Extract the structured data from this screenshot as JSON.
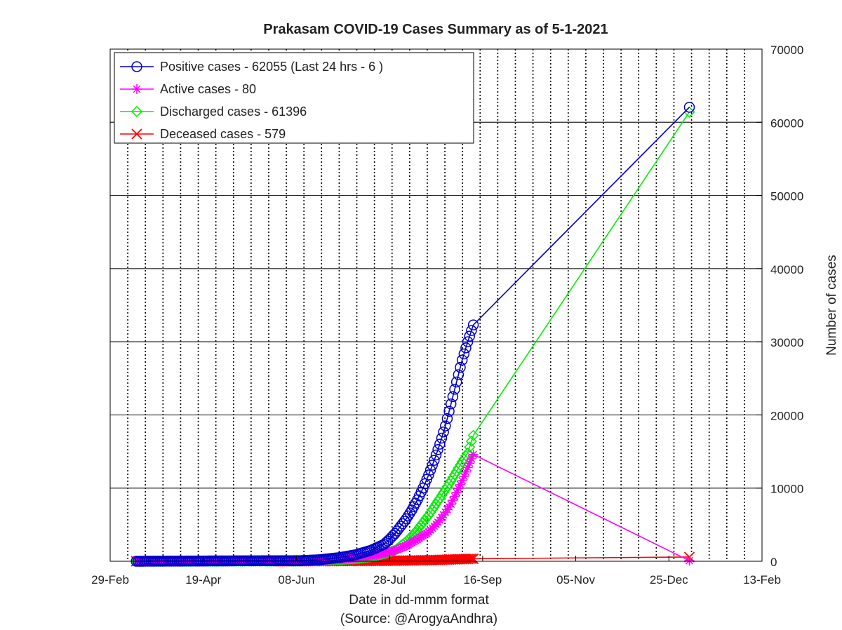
{
  "chart_data": {
    "type": "line",
    "title": "Prakasam COVID-19 Cases Summary as of 5-1-2021",
    "xlabel": "Date in dd-mmm format",
    "xlabel_source": "(Source: @ArogyaAndhra)",
    "ylabel": "Number of cases",
    "y_axis_side": "right",
    "xlim": [
      "2020-02-29",
      "2021-02-13"
    ],
    "ylim": [
      0,
      70000
    ],
    "x_ticks": [
      "29-Feb",
      "19-Apr",
      "08-Jun",
      "28-Jul",
      "16-Sep",
      "05-Nov",
      "25-Dec",
      "13-Feb"
    ],
    "x_tick_dates": [
      "2020-02-29",
      "2020-04-19",
      "2020-06-08",
      "2020-07-28",
      "2020-09-16",
      "2020-11-05",
      "2020-12-25",
      "2021-02-13"
    ],
    "y_ticks": [
      0,
      10000,
      20000,
      30000,
      40000,
      50000,
      60000,
      70000
    ],
    "grid": {
      "x": "dotted-daily",
      "y": "solid"
    },
    "legend_position": "top-left",
    "series": [
      {
        "name": "Positive cases - 62055 (Last 24 hrs - 6 )",
        "color": "#0000cc",
        "marker": "circle",
        "points": [
          [
            "2020-03-14",
            0
          ],
          [
            "2020-04-19",
            40
          ],
          [
            "2020-05-25",
            70
          ],
          [
            "2020-06-10",
            80
          ],
          [
            "2020-06-20",
            200
          ],
          [
            "2020-07-01",
            500
          ],
          [
            "2020-07-10",
            900
          ],
          [
            "2020-07-18",
            1500
          ],
          [
            "2020-07-25",
            2300
          ],
          [
            "2020-07-28",
            3000
          ],
          [
            "2020-07-31",
            3800
          ],
          [
            "2020-08-03",
            4800
          ],
          [
            "2020-08-06",
            5800
          ],
          [
            "2020-08-09",
            7000
          ],
          [
            "2020-08-12",
            8400
          ],
          [
            "2020-08-15",
            10000
          ],
          [
            "2020-08-18",
            11800
          ],
          [
            "2020-08-21",
            13800
          ],
          [
            "2020-08-24",
            16000
          ],
          [
            "2020-08-27",
            18500
          ],
          [
            "2020-08-30",
            21500
          ],
          [
            "2020-09-02",
            24500
          ],
          [
            "2020-09-05",
            27500
          ],
          [
            "2020-09-08",
            30000
          ],
          [
            "2020-09-11",
            32300
          ],
          [
            "2021-01-05",
            62055
          ]
        ]
      },
      {
        "name": "Active cases - 80",
        "color": "#ff00ff",
        "marker": "star",
        "points": [
          [
            "2020-03-14",
            0
          ],
          [
            "2020-04-19",
            40
          ],
          [
            "2020-05-25",
            30
          ],
          [
            "2020-06-10",
            30
          ],
          [
            "2020-06-20",
            100
          ],
          [
            "2020-07-01",
            250
          ],
          [
            "2020-07-10",
            500
          ],
          [
            "2020-07-18",
            800
          ],
          [
            "2020-07-25",
            1100
          ],
          [
            "2020-07-31",
            1500
          ],
          [
            "2020-08-06",
            2100
          ],
          [
            "2020-08-12",
            3000
          ],
          [
            "2020-08-18",
            4000
          ],
          [
            "2020-08-24",
            5600
          ],
          [
            "2020-08-30",
            7800
          ],
          [
            "2020-09-05",
            11000
          ],
          [
            "2020-09-11",
            14600
          ],
          [
            "2021-01-05",
            80
          ]
        ]
      },
      {
        "name": "Discharged cases - 61396",
        "color": "#00ee00",
        "marker": "diamond",
        "points": [
          [
            "2020-03-14",
            0
          ],
          [
            "2020-04-19",
            0
          ],
          [
            "2020-05-25",
            40
          ],
          [
            "2020-06-10",
            50
          ],
          [
            "2020-06-20",
            100
          ],
          [
            "2020-07-01",
            200
          ],
          [
            "2020-07-10",
            350
          ],
          [
            "2020-07-18",
            600
          ],
          [
            "2020-07-25",
            1000
          ],
          [
            "2020-07-31",
            1500
          ],
          [
            "2020-08-06",
            2700
          ],
          [
            "2020-08-12",
            4300
          ],
          [
            "2020-08-18",
            6300
          ],
          [
            "2020-08-24",
            8600
          ],
          [
            "2020-08-30",
            11000
          ],
          [
            "2020-09-05",
            13600
          ],
          [
            "2020-09-08",
            14800
          ],
          [
            "2020-09-11",
            17200
          ],
          [
            "2021-01-05",
            61396
          ]
        ]
      },
      {
        "name": "Deceased cases - 579",
        "color": "#ff0000",
        "marker": "x",
        "points": [
          [
            "2020-03-14",
            0
          ],
          [
            "2020-05-25",
            0
          ],
          [
            "2020-06-10",
            5
          ],
          [
            "2020-07-01",
            20
          ],
          [
            "2020-07-28",
            60
          ],
          [
            "2020-08-20",
            160
          ],
          [
            "2020-09-11",
            340
          ],
          [
            "2021-01-05",
            579
          ]
        ]
      }
    ]
  }
}
